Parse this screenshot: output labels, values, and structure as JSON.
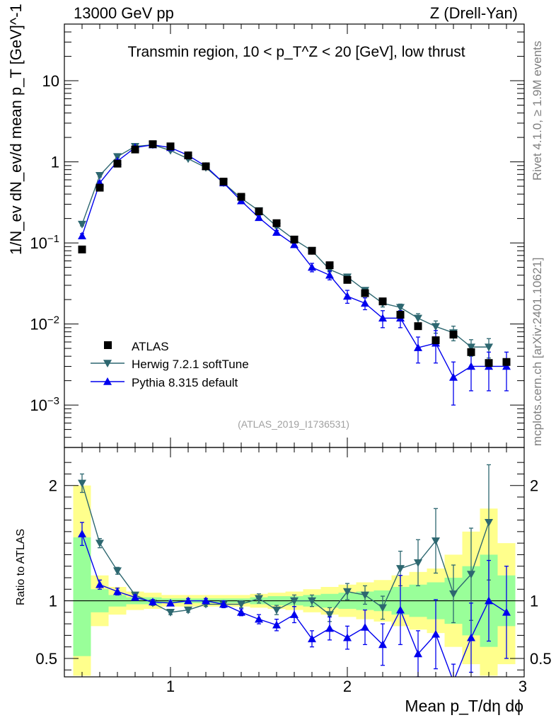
{
  "header": {
    "left": "13000 GeV pp",
    "right": "Z (Drell-Yan)"
  },
  "side_labels": {
    "rivet": "Rivet 4.1.0, ≥ 1.9M events",
    "mcplots": "mcplots.cern.ch [arXiv:2401.10621]"
  },
  "colors": {
    "atlas": "#000000",
    "herwig": "#2d6770",
    "pythia": "#0000ee",
    "band_inner": "#99ff99",
    "band_outer": "#ffff8c",
    "watermark": "#a0a0a0"
  },
  "chart_data": [
    {
      "type": "scatter",
      "panel": "main",
      "title": "Transmin region, 10 < p_T^Z < 20 [GeV], low thrust",
      "ylabel": "1/N_ev dN_ev/d mean p_T [GeV]^-1",
      "xlabel": "",
      "yscale": "log",
      "xlim": [
        0.4,
        3.0
      ],
      "ylim": [
        0.0003,
        50
      ],
      "x_ticks": [
        "1",
        "2",
        "3"
      ],
      "y_ticks": [
        "10^-3",
        "10^-2",
        "10^-1",
        "1",
        "10"
      ],
      "watermark": "(ATLAS_2019_I1736531)",
      "legend_position": "bottom-left",
      "bins": [
        [
          0.45,
          0.55
        ],
        [
          0.55,
          0.65
        ],
        [
          0.65,
          0.75
        ],
        [
          0.75,
          0.85
        ],
        [
          0.85,
          0.95
        ],
        [
          0.95,
          1.05
        ],
        [
          1.05,
          1.15
        ],
        [
          1.15,
          1.25
        ],
        [
          1.25,
          1.35
        ],
        [
          1.35,
          1.45
        ],
        [
          1.45,
          1.55
        ],
        [
          1.55,
          1.65
        ],
        [
          1.65,
          1.75
        ],
        [
          1.75,
          1.85
        ],
        [
          1.85,
          1.95
        ],
        [
          1.95,
          2.05
        ],
        [
          2.05,
          2.15
        ],
        [
          2.15,
          2.25
        ],
        [
          2.25,
          2.35
        ],
        [
          2.35,
          2.45
        ],
        [
          2.45,
          2.55
        ],
        [
          2.55,
          2.65
        ],
        [
          2.65,
          2.75
        ],
        [
          2.75,
          2.85
        ],
        [
          2.85,
          2.95
        ]
      ],
      "series": [
        {
          "name": "ATLAS",
          "marker": "square",
          "x": [
            0.5,
            0.6,
            0.7,
            0.8,
            0.9,
            1.0,
            1.1,
            1.2,
            1.3,
            1.4,
            1.5,
            1.6,
            1.7,
            1.8,
            1.9,
            2.0,
            2.1,
            2.2,
            2.3,
            2.4,
            2.5,
            2.6,
            2.7,
            2.8,
            2.9
          ],
          "values": [
            0.083,
            0.48,
            0.95,
            1.42,
            1.65,
            1.55,
            1.2,
            0.88,
            0.57,
            0.37,
            0.245,
            0.175,
            0.11,
            0.08,
            0.053,
            0.035,
            0.024,
            0.019,
            0.013,
            0.0094,
            0.0063,
            0.0074,
            0.0045,
            0.0033,
            0.0034
          ]
        },
        {
          "name": "Herwig 7.2.1 softTune",
          "marker": "triangle-down",
          "x": [
            0.5,
            0.6,
            0.7,
            0.8,
            0.9,
            1.0,
            1.1,
            1.2,
            1.3,
            1.4,
            1.5,
            1.6,
            1.7,
            1.8,
            1.9,
            2.0,
            2.1,
            2.2,
            2.3,
            2.4,
            2.5,
            2.6,
            2.7,
            2.8
          ],
          "values": [
            0.17,
            0.68,
            1.16,
            1.55,
            1.62,
            1.38,
            1.09,
            0.85,
            0.55,
            0.355,
            0.25,
            0.16,
            0.11,
            0.08,
            0.047,
            0.038,
            0.026,
            0.018,
            0.016,
            0.0118,
            0.0093,
            0.0078,
            0.0052,
            0.0052
          ],
          "errors": [
            0.008,
            0.03,
            0.04,
            0.05,
            0.05,
            0.04,
            0.03,
            0.03,
            0.02,
            0.012,
            0.009,
            0.007,
            0.005,
            0.004,
            0.003,
            0.0025,
            0.002,
            0.0018,
            0.0016,
            0.0016,
            0.0016,
            0.0016,
            0.0012,
            0.0014
          ]
        },
        {
          "name": "Pythia 8.315 default",
          "marker": "triangle-up",
          "x": [
            0.5,
            0.6,
            0.7,
            0.8,
            0.9,
            1.0,
            1.1,
            1.2,
            1.3,
            1.4,
            1.5,
            1.6,
            1.7,
            1.8,
            1.9,
            2.0,
            2.1,
            2.2,
            2.3,
            2.4,
            2.5,
            2.6,
            2.7,
            2.8,
            2.9
          ],
          "values": [
            0.122,
            0.55,
            1.02,
            1.5,
            1.62,
            1.5,
            1.2,
            0.88,
            0.55,
            0.33,
            0.205,
            0.135,
            0.095,
            0.05,
            0.04,
            0.022,
            0.018,
            0.0118,
            0.0118,
            0.0051,
            0.0058,
            0.0022,
            0.003,
            0.003,
            0.003
          ],
          "errors": [
            0.008,
            0.03,
            0.04,
            0.05,
            0.05,
            0.05,
            0.04,
            0.03,
            0.02,
            0.015,
            0.01,
            0.008,
            0.007,
            0.006,
            0.005,
            0.004,
            0.003,
            0.0028,
            0.0028,
            0.0018,
            0.0025,
            0.0012,
            0.0015,
            0.0015,
            0.0015
          ]
        }
      ]
    },
    {
      "type": "scatter",
      "panel": "ratio",
      "ylabel": "Ratio to ATLAS",
      "xlabel": "Mean p_T/dη dϕ",
      "xlim": [
        0.4,
        3.0
      ],
      "ylim": [
        0.34,
        2.33
      ],
      "x_ticks": [
        "1",
        "2",
        "3"
      ],
      "y_ticks": [
        "0.5",
        "1",
        "2"
      ],
      "reference_line": 1,
      "bands": {
        "inner": [
          [
            0.52,
            1.55
          ],
          [
            0.9,
            1.1
          ],
          [
            0.95,
            1.05
          ],
          [
            0.97,
            1.03
          ],
          [
            0.97,
            1.03
          ],
          [
            0.98,
            1.02
          ],
          [
            0.98,
            1.02
          ],
          [
            0.98,
            1.02
          ],
          [
            0.98,
            1.02
          ],
          [
            0.98,
            1.02
          ],
          [
            0.97,
            1.03
          ],
          [
            0.96,
            1.04
          ],
          [
            0.96,
            1.04
          ],
          [
            0.95,
            1.05
          ],
          [
            0.94,
            1.06
          ],
          [
            0.93,
            1.07
          ],
          [
            0.92,
            1.08
          ],
          [
            0.91,
            1.09
          ],
          [
            0.88,
            1.12
          ],
          [
            0.86,
            1.14
          ],
          [
            0.84,
            1.16
          ],
          [
            0.8,
            1.2
          ],
          [
            0.7,
            1.3
          ],
          [
            0.6,
            1.4
          ],
          [
            0.78,
            1.22
          ]
        ],
        "outer": [
          [
            0.35,
            2.0
          ],
          [
            0.78,
            1.22
          ],
          [
            0.88,
            1.12
          ],
          [
            0.92,
            1.08
          ],
          [
            0.93,
            1.07
          ],
          [
            0.95,
            1.05
          ],
          [
            0.95,
            1.05
          ],
          [
            0.95,
            1.05
          ],
          [
            0.95,
            1.05
          ],
          [
            0.95,
            1.05
          ],
          [
            0.94,
            1.06
          ],
          [
            0.93,
            1.07
          ],
          [
            0.92,
            1.08
          ],
          [
            0.9,
            1.1
          ],
          [
            0.88,
            1.12
          ],
          [
            0.86,
            1.14
          ],
          [
            0.84,
            1.16
          ],
          [
            0.82,
            1.18
          ],
          [
            0.78,
            1.22
          ],
          [
            0.75,
            1.25
          ],
          [
            0.72,
            1.28
          ],
          [
            0.6,
            1.4
          ],
          [
            0.45,
            1.6
          ],
          [
            0.35,
            1.8
          ],
          [
            0.45,
            1.5
          ]
        ]
      },
      "series": [
        {
          "name": "Herwig 7.2.1 softTune",
          "x": [
            0.5,
            0.6,
            0.7,
            0.8,
            0.9,
            1.0,
            1.1,
            1.2,
            1.3,
            1.4,
            1.5,
            1.6,
            1.7,
            1.8,
            1.9,
            2.0,
            2.1,
            2.2,
            2.3,
            2.4,
            2.5,
            2.6,
            2.7,
            2.8
          ],
          "values": [
            2.02,
            1.5,
            1.26,
            1.05,
            0.98,
            0.9,
            0.92,
            0.97,
            0.97,
            0.97,
            1.02,
            0.92,
            1.0,
            1.0,
            0.88,
            1.08,
            1.05,
            0.94,
            1.28,
            1.33,
            1.52,
            1.06,
            1.23,
            1.68
          ],
          "errors": [
            0.08,
            0.04,
            0.03,
            0.02,
            0.02,
            0.02,
            0.02,
            0.02,
            0.02,
            0.03,
            0.04,
            0.04,
            0.05,
            0.05,
            0.06,
            0.07,
            0.08,
            0.1,
            0.15,
            0.2,
            0.28,
            0.25,
            0.4,
            0.5
          ]
        },
        {
          "name": "Pythia 8.315 default",
          "x": [
            0.5,
            0.6,
            0.7,
            0.8,
            0.9,
            1.0,
            1.1,
            1.2,
            1.3,
            1.4,
            1.5,
            1.6,
            1.7,
            1.8,
            1.9,
            2.0,
            2.1,
            2.2,
            2.3,
            2.4,
            2.5,
            2.6,
            2.7,
            2.8,
            2.9
          ],
          "values": [
            1.58,
            1.14,
            1.08,
            1.03,
            0.99,
            0.98,
            1.0,
            1.0,
            0.97,
            0.9,
            0.84,
            0.79,
            0.88,
            0.67,
            0.76,
            0.68,
            0.77,
            0.62,
            0.92,
            0.54,
            0.71,
            0.3,
            0.68,
            1.0,
            0.9
          ],
          "errors": [
            0.1,
            0.04,
            0.03,
            0.02,
            0.02,
            0.02,
            0.02,
            0.02,
            0.03,
            0.03,
            0.04,
            0.05,
            0.07,
            0.07,
            0.1,
            0.1,
            0.15,
            0.18,
            0.3,
            0.2,
            0.3,
            0.15,
            0.3,
            0.35,
            0.4
          ]
        }
      ]
    }
  ]
}
